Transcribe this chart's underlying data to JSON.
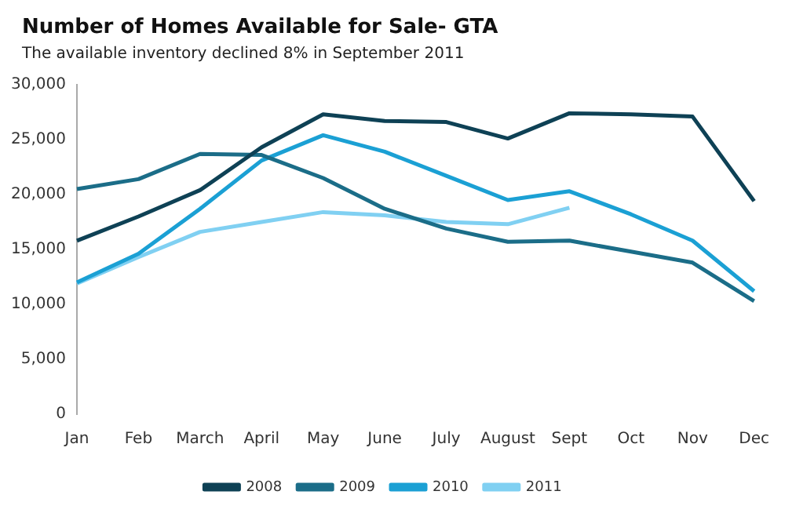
{
  "chart_data": {
    "type": "line",
    "title": "Number of Homes Available for Sale- GTA",
    "subtitle": "The available  inventory declined 8% in September 2011",
    "categories": [
      "Jan",
      "Feb",
      "March",
      "April",
      "May",
      "June",
      "July",
      "August",
      "Sept",
      "Oct",
      "Nov",
      "Dec"
    ],
    "series": [
      {
        "name": "2008",
        "color": "#0e4155",
        "values": [
          15800,
          18000,
          20400,
          24300,
          27300,
          26700,
          26600,
          25100,
          27400,
          27300,
          27100,
          19400
        ]
      },
      {
        "name": "2009",
        "color": "#1b6d88",
        "values": [
          20500,
          21400,
          23700,
          23600,
          21500,
          18700,
          16900,
          15700,
          15800,
          14800,
          13800,
          10300
        ]
      },
      {
        "name": "2010",
        "color": "#1ba0d4",
        "values": [
          12000,
          14600,
          18700,
          23100,
          25400,
          23900,
          21700,
          19500,
          20300,
          18200,
          15800,
          11200
        ]
      },
      {
        "name": "2011",
        "color": "#80d0f2",
        "values": [
          11900,
          14300,
          16600,
          17500,
          18400,
          18100,
          17500,
          17300,
          18800,
          null,
          null,
          null
        ]
      }
    ],
    "ylim": [
      0,
      30000
    ],
    "yticks": [
      0,
      {
        "value": 5000,
        "label": "5,000"
      },
      {
        "value": 10000,
        "label": "10,000"
      },
      {
        "value": 15000,
        "label": "15,000"
      },
      {
        "value": 20000,
        "label": "20,000"
      },
      {
        "value": 25000,
        "label": "25,000"
      },
      {
        "value": 30000,
        "label": "30,000"
      }
    ],
    "grid": false,
    "legend": "bottom",
    "marker": "none",
    "line_style": "solid"
  }
}
